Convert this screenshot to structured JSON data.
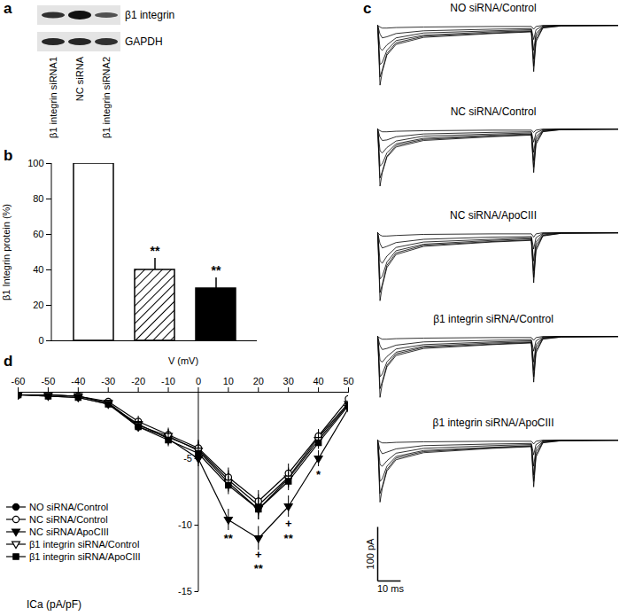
{
  "chart_data": [
    {
      "panel": "a",
      "type": "blot",
      "rows": [
        "β1 integrin",
        "GAPDH"
      ],
      "lanes": [
        "β1 integrin siRNA1",
        "NC siRNA",
        "β1 integrin siRNA2"
      ]
    },
    {
      "panel": "b",
      "type": "bar",
      "y_label": "β1 Integrin protein (%)",
      "categories": [
        null,
        null,
        null
      ],
      "values": [
        100,
        40,
        29.5
      ],
      "errors": [
        null,
        6.5,
        6
      ],
      "significance": [
        null,
        "**",
        "**"
      ],
      "colors": [
        "#ffffff",
        "hatch",
        "#000000"
      ],
      "ylim": [
        0,
        100
      ],
      "yticks": [
        0,
        20,
        40,
        60,
        80,
        100
      ]
    },
    {
      "panel": "c",
      "type": "traces",
      "time": [
        0,
        1,
        2,
        4,
        8,
        20,
        50,
        67,
        68,
        69,
        72,
        80,
        105
      ],
      "xlim": [
        0,
        105
      ],
      "ylim": [
        -140,
        10
      ],
      "tick_labels": false,
      "scale_bar": {
        "current": 100,
        "current_label": "100 pA",
        "time": 10,
        "time_label": "10 ms"
      },
      "panels": [
        {
          "title": "NO siRNA/Control",
          "currents": [
            [
              0,
              -110,
              -85,
              -55,
              -35,
              -22,
              -15,
              -12,
              -85,
              -30,
              -5,
              -1,
              0
            ],
            [
              0,
              -95,
              -82,
              -52,
              -32,
              -20,
              -14,
              -11,
              -75,
              -26,
              -4,
              -1,
              0
            ],
            [
              0,
              -72,
              -68,
              -46,
              -28,
              -18,
              -12,
              -10,
              -62,
              -20,
              -3,
              0,
              0
            ],
            [
              0,
              -42,
              -46,
              -36,
              -23,
              -14,
              -10,
              -8,
              -46,
              -15,
              -2,
              0,
              0
            ],
            [
              0,
              -16,
              -23,
              -21,
              -15,
              -10,
              -7,
              -6,
              -26,
              -8,
              -1,
              0,
              0
            ],
            [
              0,
              -3,
              -5,
              -5,
              -4,
              -3,
              -2,
              -2,
              -7,
              -2,
              0,
              0,
              0
            ]
          ]
        },
        {
          "title": "NC siRNA/Control",
          "currents": [
            [
              0,
              -105,
              -80,
              -52,
              -33,
              -21,
              -14,
              -11,
              -80,
              -28,
              -5,
              -1,
              0
            ],
            [
              0,
              -90,
              -78,
              -50,
              -30,
              -19,
              -13,
              -10,
              -70,
              -24,
              -4,
              -1,
              0
            ],
            [
              0,
              -68,
              -64,
              -44,
              -27,
              -17,
              -11,
              -9,
              -58,
              -19,
              -3,
              0,
              0
            ],
            [
              0,
              -40,
              -44,
              -34,
              -22,
              -13,
              -9,
              -7,
              -43,
              -14,
              -2,
              0,
              0
            ],
            [
              0,
              -15,
              -21,
              -20,
              -14,
              -9,
              -6,
              -5,
              -24,
              -7,
              -1,
              0,
              0
            ],
            [
              0,
              -3,
              -5,
              -5,
              -4,
              -3,
              -2,
              -2,
              -6,
              -2,
              0,
              0,
              0
            ]
          ]
        },
        {
          "title": "NC siRNA/ApoCIII",
          "currents": [
            [
              0,
              -125,
              -98,
              -64,
              -40,
              -25,
              -17,
              -14,
              -92,
              -33,
              -6,
              -1,
              0
            ],
            [
              0,
              -110,
              -95,
              -60,
              -37,
              -23,
              -16,
              -13,
              -82,
              -29,
              -5,
              -1,
              0
            ],
            [
              0,
              -85,
              -80,
              -54,
              -33,
              -21,
              -14,
              -11,
              -70,
              -23,
              -4,
              0,
              0
            ],
            [
              0,
              -52,
              -56,
              -43,
              -27,
              -17,
              -12,
              -9,
              -52,
              -17,
              -2,
              0,
              0
            ],
            [
              0,
              -20,
              -28,
              -25,
              -18,
              -12,
              -8,
              -7,
              -30,
              -9,
              -1,
              0,
              0
            ],
            [
              0,
              -4,
              -6,
              -6,
              -5,
              -3,
              -2,
              -2,
              -8,
              -2,
              0,
              0,
              0
            ]
          ]
        },
        {
          "title": "β1 integrin siRNA/Control",
          "currents": [
            [
              0,
              -112,
              -86,
              -56,
              -35,
              -22,
              -15,
              -12,
              -84,
              -30,
              -5,
              -1,
              0
            ],
            [
              0,
              -96,
              -83,
              -53,
              -32,
              -20,
              -14,
              -11,
              -74,
              -26,
              -4,
              -1,
              0
            ],
            [
              0,
              -74,
              -69,
              -47,
              -29,
              -18,
              -12,
              -10,
              -62,
              -20,
              -3,
              0,
              0
            ],
            [
              0,
              -44,
              -47,
              -37,
              -23,
              -15,
              -10,
              -8,
              -47,
              -15,
              -2,
              0,
              0
            ],
            [
              0,
              -17,
              -24,
              -22,
              -16,
              -10,
              -7,
              -6,
              -27,
              -8,
              -1,
              0,
              0
            ],
            [
              0,
              -3,
              -5,
              -5,
              -4,
              -3,
              -2,
              -2,
              -7,
              -2,
              0,
              0,
              0
            ]
          ]
        },
        {
          "title": "β1 integrin siRNA/ApoCIII",
          "currents": [
            [
              0,
              -114,
              -88,
              -57,
              -36,
              -23,
              -15,
              -12,
              -86,
              -31,
              -5,
              -1,
              0
            ],
            [
              0,
              -98,
              -85,
              -54,
              -33,
              -21,
              -14,
              -11,
              -76,
              -27,
              -4,
              -1,
              0
            ],
            [
              0,
              -76,
              -71,
              -48,
              -30,
              -19,
              -13,
              -10,
              -64,
              -21,
              -3,
              0,
              0
            ],
            [
              0,
              -45,
              -48,
              -38,
              -24,
              -15,
              -10,
              -8,
              -48,
              -15,
              -2,
              0,
              0
            ],
            [
              0,
              -18,
              -25,
              -22,
              -16,
              -10,
              -7,
              -6,
              -27,
              -8,
              -1,
              0,
              0
            ],
            [
              0,
              -3,
              -5,
              -5,
              -4,
              -3,
              -2,
              -2,
              -7,
              -2,
              0,
              0,
              0
            ]
          ]
        }
      ]
    },
    {
      "panel": "d",
      "type": "line",
      "x_label": "V (mV)",
      "y_label": "ICa (pA/pF)",
      "x": [
        -60,
        -50,
        -40,
        -30,
        -20,
        -10,
        0,
        10,
        20,
        30,
        40,
        50
      ],
      "xlim": [
        -60,
        50
      ],
      "xticks": [
        -60,
        -50,
        -40,
        -30,
        -20,
        -10,
        0,
        10,
        20,
        30,
        40,
        50
      ],
      "ylim": [
        -15,
        0
      ],
      "yticks": [
        -15,
        -10,
        -5
      ],
      "legend": "lower left",
      "series": [
        {
          "name": "NO siRNA/Control",
          "color": "#000000",
          "marker": "circle",
          "values": [
            -0.2,
            -0.2,
            -0.3,
            -0.8,
            -2.6,
            -3.4,
            -4.3,
            -6.6,
            -8.5,
            -6.4,
            -3.4,
            -0.8
          ],
          "errors": [
            0.1,
            0.1,
            0.1,
            0.2,
            0.4,
            0.5,
            0.6,
            0.7,
            0.8,
            0.7,
            0.5,
            0.4
          ]
        },
        {
          "name": "NC siRNA/Control",
          "color": "#000000",
          "marker": "circle-open",
          "values": [
            -0.2,
            -0.2,
            -0.3,
            -0.7,
            -2.2,
            -3.2,
            -4.2,
            -6.4,
            -8.2,
            -6.1,
            -3.3,
            -0.5
          ],
          "errors": [
            0.1,
            0.1,
            0.1,
            0.2,
            0.4,
            0.5,
            0.6,
            0.7,
            0.8,
            0.7,
            0.5,
            0.4
          ]
        },
        {
          "name": "NC siRNA/ApoCIII",
          "color": "#000000",
          "marker": "triangle-down",
          "values": [
            -0.2,
            -0.3,
            -0.4,
            -0.9,
            -2.4,
            -3.5,
            -5.0,
            -9.6,
            -11.0,
            -8.6,
            -5.0,
            -1.2
          ],
          "errors": [
            0.1,
            0.1,
            0.1,
            0.2,
            0.4,
            0.5,
            0.6,
            0.8,
            0.9,
            0.8,
            0.6,
            0.4
          ]
        },
        {
          "name": "β1 integrin siRNA/Control",
          "color": "#000000",
          "marker": "triangle-down-open",
          "values": [
            -0.2,
            -0.2,
            -0.3,
            -0.8,
            -2.5,
            -3.3,
            -4.4,
            -6.8,
            -8.8,
            -6.5,
            -3.6,
            -0.9
          ],
          "errors": [
            0.1,
            0.1,
            0.1,
            0.2,
            0.4,
            0.5,
            0.6,
            0.7,
            0.8,
            0.7,
            0.5,
            0.4
          ]
        },
        {
          "name": "β1 integrin siRNA/ApoCIII",
          "color": "#000000",
          "marker": "square",
          "values": [
            -0.2,
            -0.3,
            -0.4,
            -0.9,
            -2.6,
            -3.6,
            -4.6,
            -7.0,
            -8.8,
            -6.7,
            -3.8,
            -1.0
          ],
          "errors": [
            0.1,
            0.1,
            0.1,
            0.2,
            0.4,
            0.5,
            0.6,
            0.7,
            0.8,
            0.7,
            0.5,
            0.4
          ]
        }
      ],
      "annotations": [
        {
          "x": 10,
          "y": -11,
          "text": "**"
        },
        {
          "x": 20,
          "y": -12.2,
          "text": "+"
        },
        {
          "x": 20,
          "y": -13.3,
          "text": "**"
        },
        {
          "x": 30,
          "y": -9.9,
          "text": "+"
        },
        {
          "x": 30,
          "y": -11,
          "text": "**"
        },
        {
          "x": 40,
          "y": -6.2,
          "text": "*"
        }
      ]
    }
  ]
}
